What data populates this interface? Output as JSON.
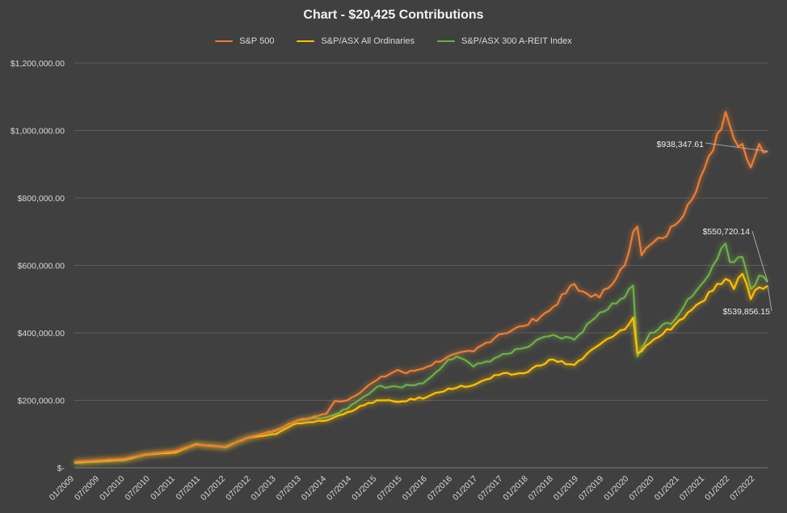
{
  "chart_data": {
    "type": "line",
    "title": "Chart - $20,425 Contributions",
    "ylim": [
      0,
      1200000
    ],
    "y_ticks": [
      0,
      200000,
      400000,
      600000,
      800000,
      1000000,
      1200000
    ],
    "y_tick_labels": [
      "$-",
      "$200,000.00",
      "$400,000.00",
      "$600,000.00",
      "$800,000.00",
      "$1,000,000.00",
      "$1,200,000.00"
    ],
    "x_tick_labels": [
      "01/2009",
      "07/2009",
      "01/2010",
      "07/2010",
      "01/2011",
      "07/2011",
      "01/2012",
      "07/2012",
      "01/2013",
      "07/2013",
      "01/2014",
      "07/2014",
      "01/2015",
      "07/2015",
      "01/2016",
      "07/2016",
      "01/2017",
      "07/2017",
      "01/2018",
      "07/2018",
      "01/2019",
      "07/2019",
      "01/2020",
      "07/2020",
      "01/2021",
      "07/2021",
      "01/2022",
      "07/2022"
    ],
    "x_range": [
      "2009-01",
      "2022-10"
    ],
    "grid": true,
    "legend_position": "top",
    "series": [
      {
        "name": "S&P 500",
        "color": "#ed7d31",
        "points": [
          [
            "2009-01",
            18000
          ],
          [
            "2010-01",
            27000
          ],
          [
            "2010-06",
            40000
          ],
          [
            "2011-01",
            50000
          ],
          [
            "2011-06",
            68000
          ],
          [
            "2012-01",
            62000
          ],
          [
            "2012-06",
            88000
          ],
          [
            "2013-01",
            112000
          ],
          [
            "2013-06",
            140000
          ],
          [
            "2014-01",
            160000
          ],
          [
            "2014-03",
            198000
          ],
          [
            "2014-06",
            200000
          ],
          [
            "2015-01",
            260000
          ],
          [
            "2015-06",
            290000
          ],
          [
            "2015-08",
            280000
          ],
          [
            "2016-01",
            300000
          ],
          [
            "2016-06",
            330000
          ],
          [
            "2016-12",
            345000
          ],
          [
            "2017-06",
            395000
          ],
          [
            "2017-12",
            420000
          ],
          [
            "2018-06",
            465000
          ],
          [
            "2018-12",
            545000
          ],
          [
            "2019-01",
            525000
          ],
          [
            "2019-06",
            505000
          ],
          [
            "2019-12",
            600000
          ],
          [
            "2020-01",
            640000
          ],
          [
            "2020-02",
            700000
          ],
          [
            "2020-03",
            715000
          ],
          [
            "2020-04",
            630000
          ],
          [
            "2020-06",
            660000
          ],
          [
            "2020-09",
            680000
          ],
          [
            "2020-12",
            720000
          ],
          [
            "2021-03",
            780000
          ],
          [
            "2021-06",
            860000
          ],
          [
            "2021-09",
            940000
          ],
          [
            "2021-12",
            1055000
          ],
          [
            "2022-02",
            975000
          ],
          [
            "2022-04",
            960000
          ],
          [
            "2022-06",
            890000
          ],
          [
            "2022-08",
            960000
          ],
          [
            "2022-10",
            938347.61
          ]
        ]
      },
      {
        "name": "S&P/ASX All Ordinaries",
        "color": "#ffc000",
        "points": [
          [
            "2009-01",
            16000
          ],
          [
            "2010-01",
            25000
          ],
          [
            "2010-06",
            40000
          ],
          [
            "2011-01",
            45000
          ],
          [
            "2011-06",
            70000
          ],
          [
            "2012-01",
            62000
          ],
          [
            "2012-06",
            88000
          ],
          [
            "2013-01",
            100000
          ],
          [
            "2013-06",
            132000
          ],
          [
            "2014-01",
            140000
          ],
          [
            "2014-06",
            165000
          ],
          [
            "2015-01",
            200000
          ],
          [
            "2015-06",
            195000
          ],
          [
            "2016-01",
            210000
          ],
          [
            "2016-06",
            235000
          ],
          [
            "2016-12",
            245000
          ],
          [
            "2017-06",
            275000
          ],
          [
            "2017-12",
            280000
          ],
          [
            "2018-06",
            320000
          ],
          [
            "2018-12",
            305000
          ],
          [
            "2019-06",
            365000
          ],
          [
            "2019-12",
            410000
          ],
          [
            "2020-02",
            445000
          ],
          [
            "2020-03",
            340000
          ],
          [
            "2020-06",
            370000
          ],
          [
            "2020-12",
            425000
          ],
          [
            "2021-03",
            460000
          ],
          [
            "2021-06",
            490000
          ],
          [
            "2021-09",
            525000
          ],
          [
            "2021-12",
            560000
          ],
          [
            "2022-02",
            530000
          ],
          [
            "2022-04",
            575000
          ],
          [
            "2022-06",
            500000
          ],
          [
            "2022-08",
            535000
          ],
          [
            "2022-10",
            539856.15
          ]
        ]
      },
      {
        "name": "S&P/ASX 300 A-REIT Index",
        "color": "#70ad47",
        "points": [
          [
            "2009-01",
            14000
          ],
          [
            "2010-01",
            22000
          ],
          [
            "2010-06",
            38000
          ],
          [
            "2011-01",
            48000
          ],
          [
            "2011-06",
            70000
          ],
          [
            "2012-01",
            60000
          ],
          [
            "2012-06",
            88000
          ],
          [
            "2013-01",
            110000
          ],
          [
            "2013-06",
            140000
          ],
          [
            "2014-01",
            150000
          ],
          [
            "2014-06",
            175000
          ],
          [
            "2015-01",
            240000
          ],
          [
            "2015-06",
            240000
          ],
          [
            "2015-12",
            250000
          ],
          [
            "2016-06",
            320000
          ],
          [
            "2016-08",
            330000
          ],
          [
            "2016-12",
            300000
          ],
          [
            "2017-06",
            330000
          ],
          [
            "2017-12",
            355000
          ],
          [
            "2018-06",
            390000
          ],
          [
            "2018-12",
            380000
          ],
          [
            "2019-06",
            460000
          ],
          [
            "2019-12",
            505000
          ],
          [
            "2020-02",
            540000
          ],
          [
            "2020-03",
            330000
          ],
          [
            "2020-06",
            400000
          ],
          [
            "2020-12",
            440000
          ],
          [
            "2021-03",
            500000
          ],
          [
            "2021-06",
            540000
          ],
          [
            "2021-09",
            600000
          ],
          [
            "2021-12",
            665000
          ],
          [
            "2022-01",
            610000
          ],
          [
            "2022-04",
            625000
          ],
          [
            "2022-06",
            530000
          ],
          [
            "2022-08",
            570000
          ],
          [
            "2022-10",
            550720.14
          ]
        ]
      }
    ],
    "annotations": [
      {
        "text": "$938,347.61",
        "series": 0
      },
      {
        "text": "$550,720.14",
        "series": 2
      },
      {
        "text": "$539,856.15",
        "series": 1
      }
    ]
  }
}
